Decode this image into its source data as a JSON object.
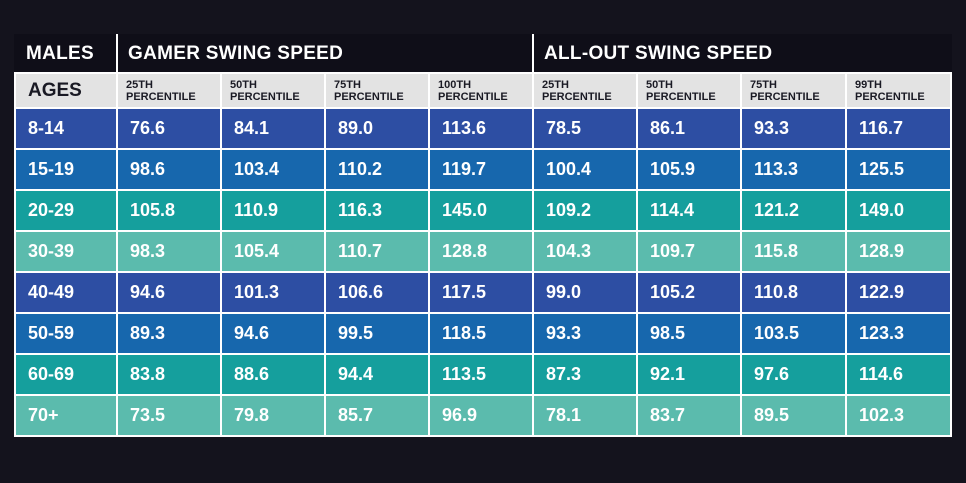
{
  "header": {
    "males": "MALES",
    "gamer": "GAMER SWING SPEED",
    "allout": "ALL-OUT SWING SPEED",
    "ages": "AGES"
  },
  "subheaders": [
    {
      "line1": "25TH",
      "line2": "PERCENTILE"
    },
    {
      "line1": "50TH",
      "line2": "PERCENTILE"
    },
    {
      "line1": "75TH",
      "line2": "PERCENTILE"
    },
    {
      "line1": "100TH",
      "line2": "PERCENTILE"
    },
    {
      "line1": "25TH",
      "line2": "PERCENTILE"
    },
    {
      "line1": "50TH",
      "line2": "PERCENTILE"
    },
    {
      "line1": "75TH",
      "line2": "PERCENTILE"
    },
    {
      "line1": "99TH",
      "line2": "PERCENTILE"
    }
  ],
  "colors": {
    "title_bg": "#0f0e18",
    "subheader_bg": "#e3e3e3",
    "row_navy": "#2d4ea3",
    "row_blue": "#1767ad",
    "row_teal": "#159f9d",
    "row_mint": "#5bbbad"
  },
  "chart_data": {
    "type": "table",
    "title": "MALES",
    "groups": [
      "GAMER SWING SPEED",
      "ALL-OUT SWING SPEED"
    ],
    "columns": [
      "AGES",
      "25TH PERCENTILE",
      "50TH PERCENTILE",
      "75TH PERCENTILE",
      "100TH PERCENTILE",
      "25TH PERCENTILE",
      "50TH PERCENTILE",
      "75TH PERCENTILE",
      "99TH PERCENTILE"
    ],
    "rows": [
      {
        "age": "8-14",
        "values": [
          "76.6",
          "84.1",
          "89.0",
          "113.6",
          "78.5",
          "86.1",
          "93.3",
          "116.7"
        ]
      },
      {
        "age": "15-19",
        "values": [
          "98.6",
          "103.4",
          "110.2",
          "119.7",
          "100.4",
          "105.9",
          "113.3",
          "125.5"
        ]
      },
      {
        "age": "20-29",
        "values": [
          "105.8",
          "110.9",
          "116.3",
          "145.0",
          "109.2",
          "114.4",
          "121.2",
          "149.0"
        ]
      },
      {
        "age": "30-39",
        "values": [
          "98.3",
          "105.4",
          "110.7",
          "128.8",
          "104.3",
          "109.7",
          "115.8",
          "128.9"
        ]
      },
      {
        "age": "40-49",
        "values": [
          "94.6",
          "101.3",
          "106.6",
          "117.5",
          "99.0",
          "105.2",
          "110.8",
          "122.9"
        ]
      },
      {
        "age": "50-59",
        "values": [
          "89.3",
          "94.6",
          "99.5",
          "118.5",
          "93.3",
          "98.5",
          "103.5",
          "123.3"
        ]
      },
      {
        "age": "60-69",
        "values": [
          "83.8",
          "88.6",
          "94.4",
          "113.5",
          "87.3",
          "92.1",
          "97.6",
          "114.6"
        ]
      },
      {
        "age": "70+",
        "values": [
          "73.5",
          "79.8",
          "85.7",
          "96.9",
          "78.1",
          "83.7",
          "89.5",
          "102.3"
        ]
      }
    ]
  }
}
